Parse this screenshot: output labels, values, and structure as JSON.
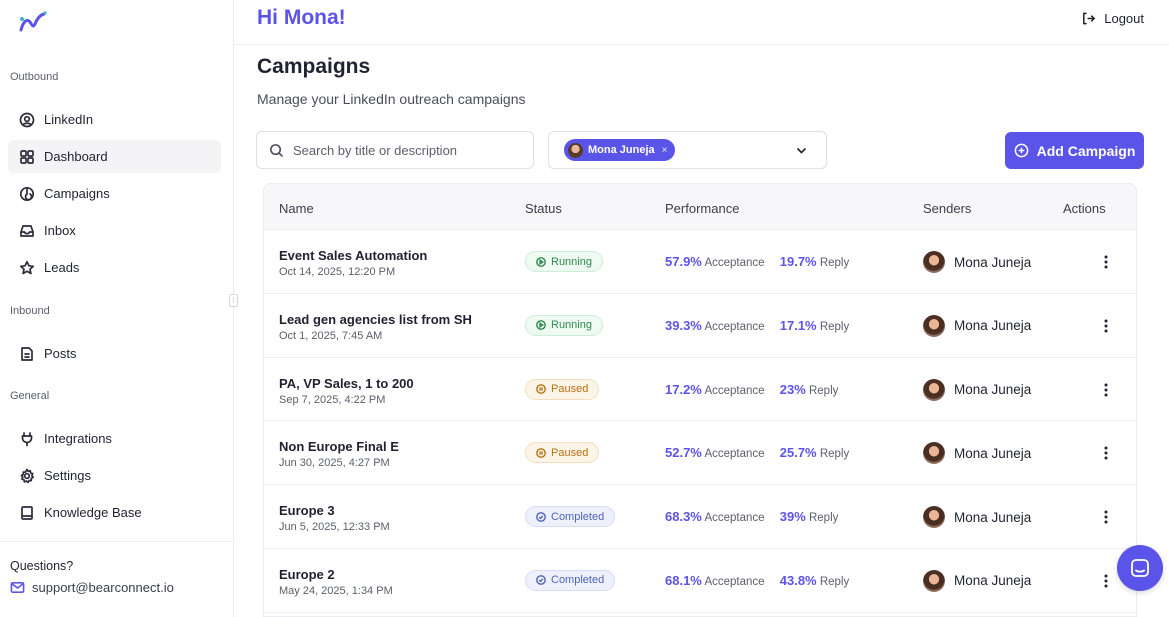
{
  "app": {
    "greeting": "Hi Mona!",
    "logout_label": "Logout"
  },
  "sidebar": {
    "sections": [
      {
        "label": "Outbound"
      },
      {
        "label": "Inbound"
      },
      {
        "label": "General"
      }
    ],
    "items": [
      {
        "label": "LinkedIn",
        "icon": "at-sign-icon"
      },
      {
        "label": "Dashboard",
        "icon": "grid-icon",
        "active": true
      },
      {
        "label": "Campaigns",
        "icon": "campaign-icon"
      },
      {
        "label": "Inbox",
        "icon": "inbox-icon"
      },
      {
        "label": "Leads",
        "icon": "star-icon"
      },
      {
        "label": "Posts",
        "icon": "document-icon"
      },
      {
        "label": "Integrations",
        "icon": "plug-icon"
      },
      {
        "label": "Settings",
        "icon": "gear-icon"
      },
      {
        "label": "Knowledge Base",
        "icon": "book-icon"
      }
    ],
    "questions_label": "Questions?",
    "support_email": "support@bearconnect.io"
  },
  "page": {
    "title": "Campaigns",
    "subtitle": "Manage your LinkedIn outreach campaigns",
    "search_placeholder": "Search by title or description",
    "filter_chip": "Mona Juneja",
    "filter_chip_remove": "×",
    "add_button": "Add Campaign"
  },
  "table": {
    "columns": [
      "Name",
      "Status",
      "Performance",
      "Senders",
      "Actions"
    ],
    "acceptance_label": "Acceptance",
    "reply_label": "Reply",
    "rows": [
      {
        "name": "Event Sales Automation",
        "date": "Oct 14, 2025, 12:20 PM",
        "status": "Running",
        "status_type": "running",
        "acceptance": "57.9%",
        "reply": "19.7%",
        "sender": "Mona Juneja"
      },
      {
        "name": "Lead gen agencies list from SH",
        "date": "Oct 1, 2025, 7:45 AM",
        "status": "Running",
        "status_type": "running",
        "acceptance": "39.3%",
        "reply": "17.1%",
        "sender": "Mona Juneja"
      },
      {
        "name": "PA, VP Sales, 1 to 200",
        "date": "Sep 7, 2025, 4:22 PM",
        "status": "Paused",
        "status_type": "paused",
        "acceptance": "17.2%",
        "reply": "23%",
        "sender": "Mona Juneja"
      },
      {
        "name": "Non Europe Final E",
        "date": "Jun 30, 2025, 4:27 PM",
        "status": "Paused",
        "status_type": "paused",
        "acceptance": "52.7%",
        "reply": "25.7%",
        "sender": "Mona Juneja"
      },
      {
        "name": "Europe 3",
        "date": "Jun 5, 2025, 12:33 PM",
        "status": "Completed",
        "status_type": "completed",
        "acceptance": "68.3%",
        "reply": "39%",
        "sender": "Mona Juneja"
      },
      {
        "name": "Europe 2",
        "date": "May 24, 2025, 1:34 PM",
        "status": "Completed",
        "status_type": "completed",
        "acceptance": "68.1%",
        "reply": "43.8%",
        "sender": "Mona Juneja"
      }
    ]
  },
  "colors": {
    "accent": "#5b54e8",
    "running": "#2f8a4f",
    "paused": "#b4730f",
    "completed": "#4f63b8"
  }
}
